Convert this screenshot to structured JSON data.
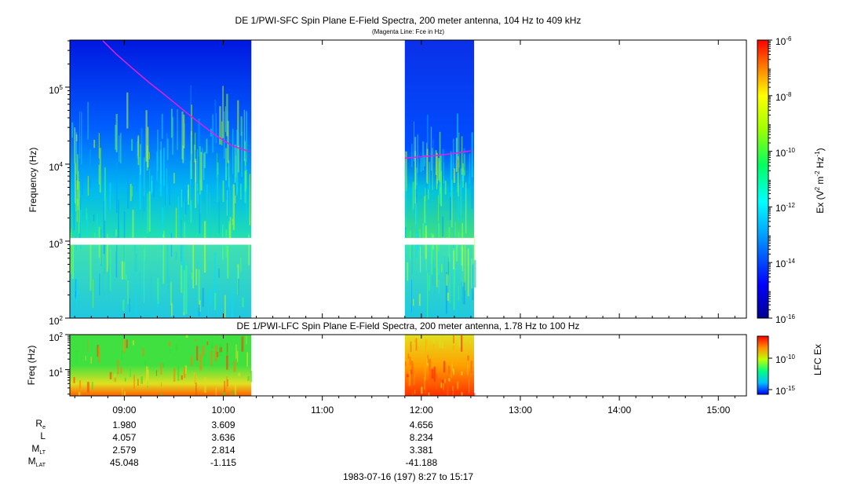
{
  "chart_data": [
    {
      "type": "heatmap",
      "title": "DE 1/PWI-SFC  Spin Plane E-Field Spectra, 200 meter antenna, 104 Hz to 409 kHz",
      "subtitle": "(Magenta Line: Fce in Hz)",
      "xlabel": "",
      "ylabel": "Frequency (Hz)",
      "yscale": "log",
      "ylim": [
        100,
        409000
      ],
      "y_ticks": [
        "10^2",
        "10^3",
        "10^4",
        "10^5"
      ],
      "xlim": [
        "08:27",
        "15:17"
      ],
      "data_intervals": [
        [
          "08:27",
          "10:17"
        ],
        [
          "11:50",
          "12:32"
        ]
      ],
      "gap_band_hz": [
        900,
        1100
      ],
      "colorbar": {
        "label": "Ex (V^2 m^-2 Hz^-1)",
        "scale": "log",
        "range": [
          1e-16,
          1e-06
        ],
        "ticks": [
          "10^-6",
          "10^-8",
          "10^-10",
          "10^-12",
          "10^-14",
          "10^-16"
        ]
      },
      "series": [
        {
          "name": "Fce",
          "color": "#e020e0",
          "points": [
            {
              "t": "08:47",
              "f": 400000
            },
            {
              "t": "08:55",
              "f": 270000
            },
            {
              "t": "09:05",
              "f": 175000
            },
            {
              "t": "09:15",
              "f": 115000
            },
            {
              "t": "09:25",
              "f": 78000
            },
            {
              "t": "09:35",
              "f": 52000
            },
            {
              "t": "09:45",
              "f": 35000
            },
            {
              "t": "09:55",
              "f": 24000
            },
            {
              "t": "10:05",
              "f": 17500
            },
            {
              "t": "10:16",
              "f": 14500
            },
            {
              "t": "11:50",
              "f": 12000
            },
            {
              "t": "12:00",
              "f": 12500
            },
            {
              "t": "12:10",
              "f": 13000
            },
            {
              "t": "12:20",
              "f": 13800
            },
            {
              "t": "12:31",
              "f": 15000
            }
          ]
        }
      ]
    },
    {
      "type": "heatmap",
      "title": "DE 1/PWI-LFC  Spin Plane E-Field Spectra, 200 meter antenna, 1.78 Hz to 100 Hz",
      "ylabel": "Freq (Hz)",
      "yscale": "log",
      "ylim": [
        1.78,
        100
      ],
      "y_ticks": [
        "10^2",
        "10^1"
      ],
      "xlim": [
        "08:27",
        "15:17"
      ],
      "data_intervals": [
        [
          "08:27",
          "10:17"
        ],
        [
          "11:50",
          "12:32"
        ]
      ],
      "colorbar": {
        "label": "LFC Ex",
        "scale": "log",
        "ticks": [
          "10^-10",
          "10^-15"
        ]
      }
    }
  ],
  "x_ticks": [
    "09:00",
    "10:00",
    "11:00",
    "12:00",
    "13:00",
    "14:00",
    "15:00"
  ],
  "ephemeris": {
    "row_labels": [
      {
        "main": "R",
        "sub": "e"
      },
      {
        "main": "L",
        "sub": ""
      },
      {
        "main": "M",
        "sub": "LT"
      },
      {
        "main": "M",
        "sub": "LAT"
      }
    ],
    "columns": [
      {
        "time": "09:00",
        "values": [
          "1.980",
          "4.057",
          "2.579",
          "45.048"
        ]
      },
      {
        "time": "10:00",
        "values": [
          "3.609",
          "3.636",
          "2.814",
          "-1.115"
        ]
      },
      {
        "time": "12:00",
        "values": [
          "4.656",
          "8.234",
          "3.381",
          "-41.188"
        ]
      }
    ]
  },
  "footer": "1983-07-16 (197) 8:27 to 15:17"
}
